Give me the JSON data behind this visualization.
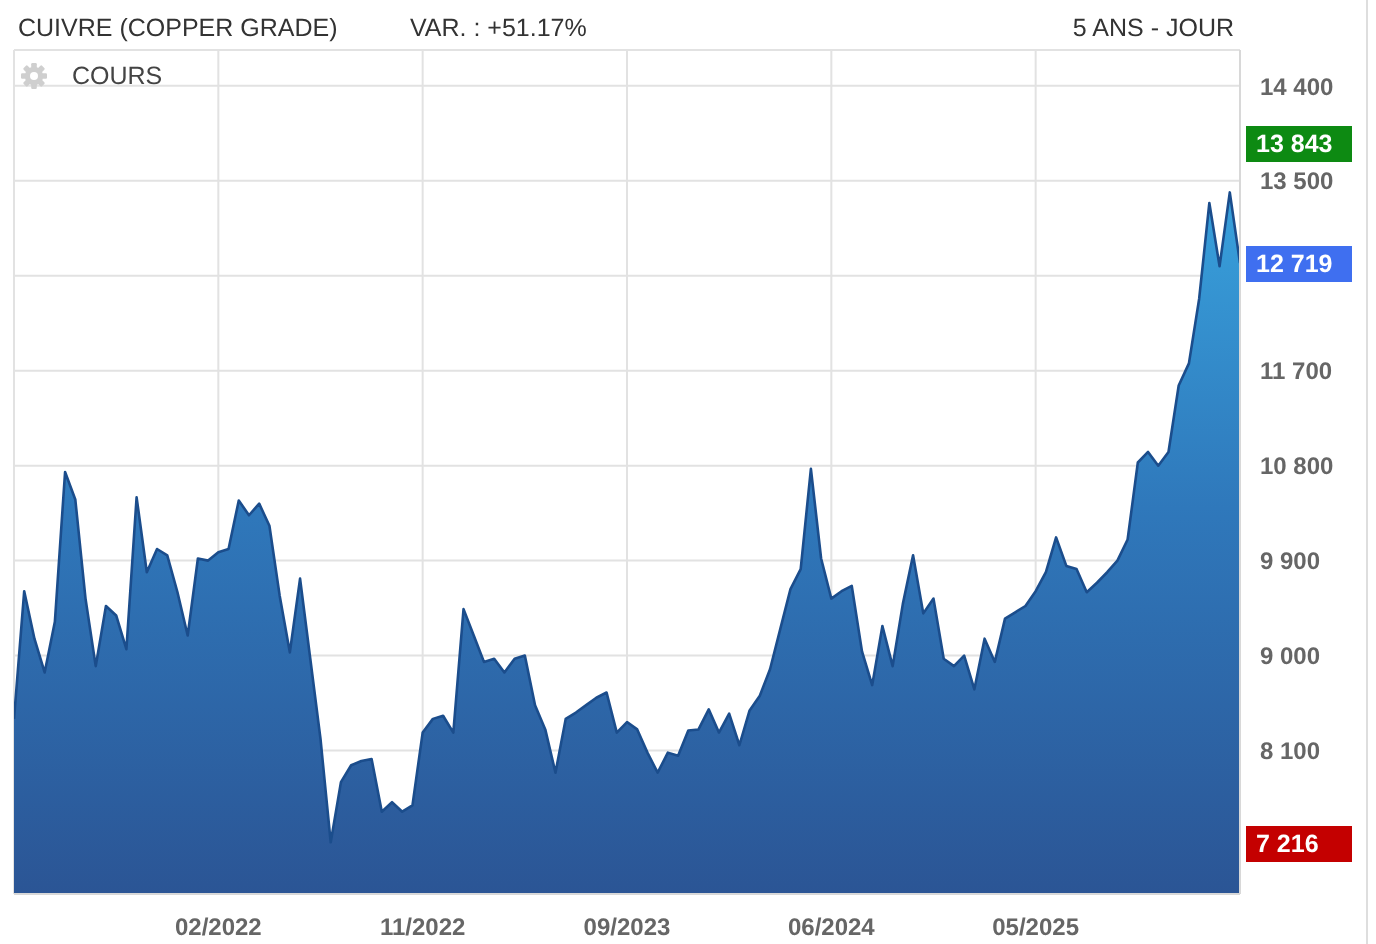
{
  "chart_data": {
    "type": "area",
    "title": "CUIVRE (COPPER GRADE)",
    "subtitle": "VAR. : +51.17%",
    "annotations": [
      "5 ANS - JOUR",
      "13 843",
      "12 719",
      "7 216"
    ],
    "categories": [
      null,
      null,
      null,
      null,
      null,
      null,
      null,
      null,
      null,
      null,
      null,
      null,
      null,
      null,
      null,
      null,
      null,
      null,
      null,
      null,
      "02/2022",
      null,
      null,
      null,
      null,
      null,
      null,
      null,
      null,
      null,
      null,
      null,
      null,
      null,
      null,
      null,
      null,
      null,
      null,
      null,
      "11/2022",
      null,
      null,
      null,
      null,
      null,
      null,
      null,
      null,
      null,
      null,
      null,
      null,
      null,
      null,
      null,
      null,
      null,
      null,
      null,
      "09/2023",
      null,
      null,
      null,
      null,
      null,
      null,
      null,
      null,
      null,
      null,
      null,
      null,
      null,
      null,
      null,
      null,
      null,
      null,
      null,
      "06/2024",
      null,
      null,
      null,
      null,
      null,
      null,
      null,
      null,
      null,
      null,
      null,
      null,
      null,
      null,
      null,
      null,
      null,
      null,
      null,
      "05/2025",
      null,
      null,
      null,
      null,
      null,
      null,
      null,
      null,
      null,
      null,
      null,
      null,
      null,
      null,
      null,
      null,
      null,
      null,
      null,
      null
    ],
    "series": [
      {
        "name": "COURS",
        "color": "#2f78bb",
        "values": [
          8400,
          9610,
          9160,
          8840,
          9320,
          10740,
          10480,
          9540,
          8900,
          9470,
          9380,
          9060,
          10500,
          9790,
          10010,
          9950,
          9600,
          9190,
          9920,
          9900,
          9980,
          10010,
          10470,
          10330,
          10440,
          10230,
          9570,
          9030,
          9730,
          8970,
          8210,
          7230,
          7800,
          7960,
          8000,
          8020,
          7520,
          7610,
          7520,
          7580,
          8270,
          8400,
          8430,
          8270,
          9440,
          9190,
          8940,
          8970,
          8840,
          8970,
          9000,
          8530,
          8300,
          7890,
          8400,
          8460,
          8530,
          8600,
          8650,
          8270,
          8370,
          8300,
          8080,
          7890,
          8080,
          8050,
          8290,
          8300,
          8490,
          8270,
          8450,
          8150,
          8480,
          8620,
          8870,
          9250,
          9630,
          9820,
          10770,
          9920,
          9540,
          9610,
          9660,
          9040,
          8720,
          9280,
          8900,
          9490,
          9950,
          9400,
          9540,
          8970,
          8900,
          9000,
          8680,
          9160,
          8940,
          9350,
          9410,
          9470,
          9610,
          9790,
          10120,
          9850,
          9820,
          9600,
          9690,
          9790,
          9900,
          10100,
          10830,
          10930,
          10800,
          10930,
          11560,
          11770,
          12380,
          13290,
          12690,
          13390,
          12720
        ]
      }
    ],
    "ylim": [
      6740,
      14740
    ],
    "yticks": [
      {
        "value": 8100,
        "label": "8 100"
      },
      {
        "value": 9000,
        "label": "9 000"
      },
      {
        "value": 9900,
        "label": "9 900"
      },
      {
        "value": 10800,
        "label": "10 800"
      },
      {
        "value": 11700,
        "label": "11 700"
      },
      {
        "value": 12600,
        "label": null
      },
      {
        "value": 13500,
        "label": "13 500"
      },
      {
        "value": 14400,
        "label": "14 400"
      }
    ],
    "grid": true,
    "legend": "top left"
  }
}
